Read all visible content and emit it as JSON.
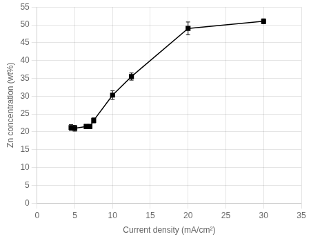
{
  "chart_data": {
    "type": "line",
    "x": [
      4.5,
      5.0,
      6.5,
      7.0,
      7.5,
      10.0,
      12.5,
      20.0,
      30.0
    ],
    "values": [
      21.2,
      21.0,
      21.5,
      21.5,
      23.2,
      30.3,
      35.5,
      49.0,
      51.0
    ],
    "yerr": [
      0.8,
      0.8,
      0.6,
      0.6,
      0.7,
      1.2,
      1.0,
      1.8,
      0.7
    ],
    "color": "black",
    "marker": "square",
    "line_style": "solid",
    "xlabel": "Current density (mA/cm²)",
    "ylabel": "Zn concentration (wt%)",
    "xlim": [
      0,
      35
    ],
    "ylim": [
      0,
      55
    ],
    "xticks": [
      0,
      5,
      10,
      15,
      20,
      25,
      30,
      35
    ],
    "yticks": [
      0,
      5,
      10,
      15,
      20,
      25,
      30,
      35,
      40,
      45,
      50,
      55
    ],
    "grid": true
  }
}
